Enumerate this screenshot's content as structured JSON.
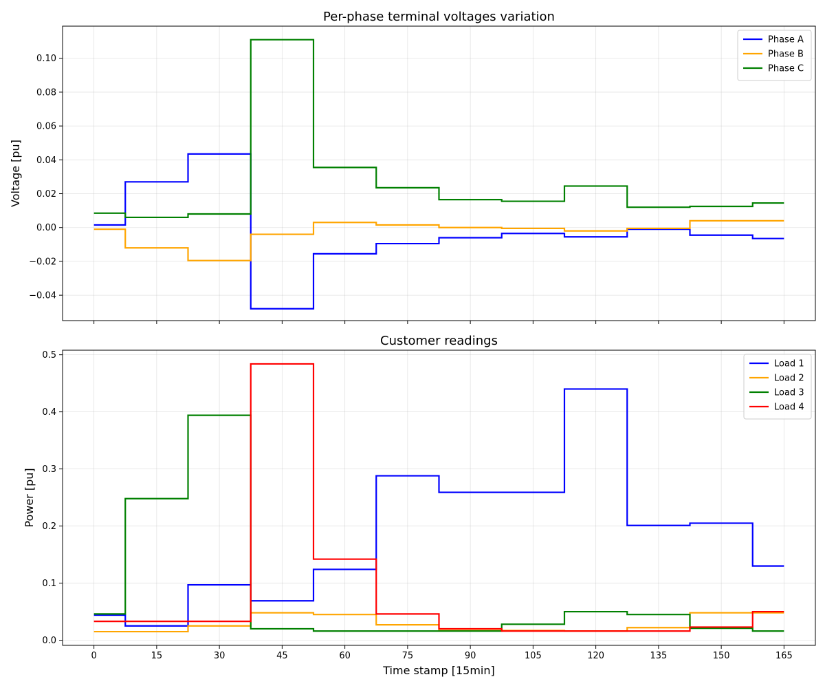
{
  "chart_data": [
    {
      "type": "line",
      "step": "post",
      "title": "Per-phase terminal voltages variation",
      "xlabel": "",
      "ylabel": "Voltage [pu]",
      "xlim": [
        -7.5,
        172.5
      ],
      "ylim": [
        -0.055,
        0.119
      ],
      "xticks": [
        0,
        15,
        30,
        45,
        60,
        75,
        90,
        105,
        120,
        135,
        150,
        165
      ],
      "xtick_labels_shown": false,
      "yticks": [
        -0.04,
        -0.02,
        0.0,
        0.02,
        0.04,
        0.06,
        0.08,
        0.1
      ],
      "ytick_labels": [
        "−0.04",
        "−0.02",
        "0.00",
        "0.02",
        "0.04",
        "0.06",
        "0.08",
        "0.10"
      ],
      "grid": true,
      "legend": "top-right",
      "x": [
        0,
        7.5,
        22.5,
        37.5,
        52.5,
        67.5,
        82.5,
        97.5,
        112.5,
        127.5,
        142.5,
        157.5,
        165
      ],
      "series": [
        {
          "name": "Phase A",
          "color": "#0000ff",
          "values": [
            0.0015,
            0.027,
            0.0435,
            -0.048,
            -0.0155,
            -0.0095,
            -0.006,
            -0.0035,
            -0.0055,
            -0.001,
            -0.0045,
            -0.0065,
            -0.0065
          ]
        },
        {
          "name": "Phase B",
          "color": "#ffa500",
          "values": [
            -0.001,
            -0.012,
            -0.0195,
            -0.004,
            0.003,
            0.0015,
            0.0,
            -0.0005,
            -0.002,
            -0.0005,
            0.004,
            0.004,
            0.004
          ]
        },
        {
          "name": "Phase C",
          "color": "#008000",
          "values": [
            0.0085,
            0.006,
            0.008,
            0.111,
            0.0355,
            0.0235,
            0.0165,
            0.0155,
            0.0245,
            0.012,
            0.0125,
            0.0145,
            0.0145
          ]
        }
      ]
    },
    {
      "type": "line",
      "step": "post",
      "title": "Customer readings",
      "xlabel": "Time stamp [15min]",
      "ylabel": "Power [pu]",
      "xlim": [
        -7.5,
        172.5
      ],
      "ylim": [
        -0.009,
        0.508
      ],
      "xticks": [
        0,
        15,
        30,
        45,
        60,
        75,
        90,
        105,
        120,
        135,
        150,
        165
      ],
      "xtick_labels": [
        "0",
        "15",
        "30",
        "45",
        "60",
        "75",
        "90",
        "105",
        "120",
        "135",
        "150",
        "165"
      ],
      "yticks": [
        0.0,
        0.1,
        0.2,
        0.3,
        0.4,
        0.5
      ],
      "ytick_labels": [
        "0.0",
        "0.1",
        "0.2",
        "0.3",
        "0.4",
        "0.5"
      ],
      "grid": true,
      "legend": "top-right",
      "x": [
        0,
        7.5,
        22.5,
        37.5,
        52.5,
        67.5,
        82.5,
        97.5,
        112.5,
        127.5,
        142.5,
        157.5,
        165
      ],
      "series": [
        {
          "name": "Load 1",
          "color": "#0000ff",
          "values": [
            0.044,
            0.025,
            0.097,
            0.069,
            0.124,
            0.288,
            0.259,
            0.259,
            0.44,
            0.201,
            0.205,
            0.13,
            0.13
          ]
        },
        {
          "name": "Load 2",
          "color": "#ffa500",
          "values": [
            0.015,
            0.015,
            0.025,
            0.048,
            0.045,
            0.027,
            0.017,
            0.017,
            0.016,
            0.022,
            0.048,
            0.048,
            0.048
          ]
        },
        {
          "name": "Load 3",
          "color": "#008000",
          "values": [
            0.046,
            0.248,
            0.394,
            0.02,
            0.016,
            0.016,
            0.016,
            0.028,
            0.05,
            0.045,
            0.021,
            0.016,
            0.016
          ]
        },
        {
          "name": "Load 4",
          "color": "#ff0000",
          "values": [
            0.033,
            0.033,
            0.033,
            0.484,
            0.142,
            0.046,
            0.02,
            0.016,
            0.016,
            0.016,
            0.023,
            0.05,
            0.05
          ]
        }
      ]
    }
  ]
}
